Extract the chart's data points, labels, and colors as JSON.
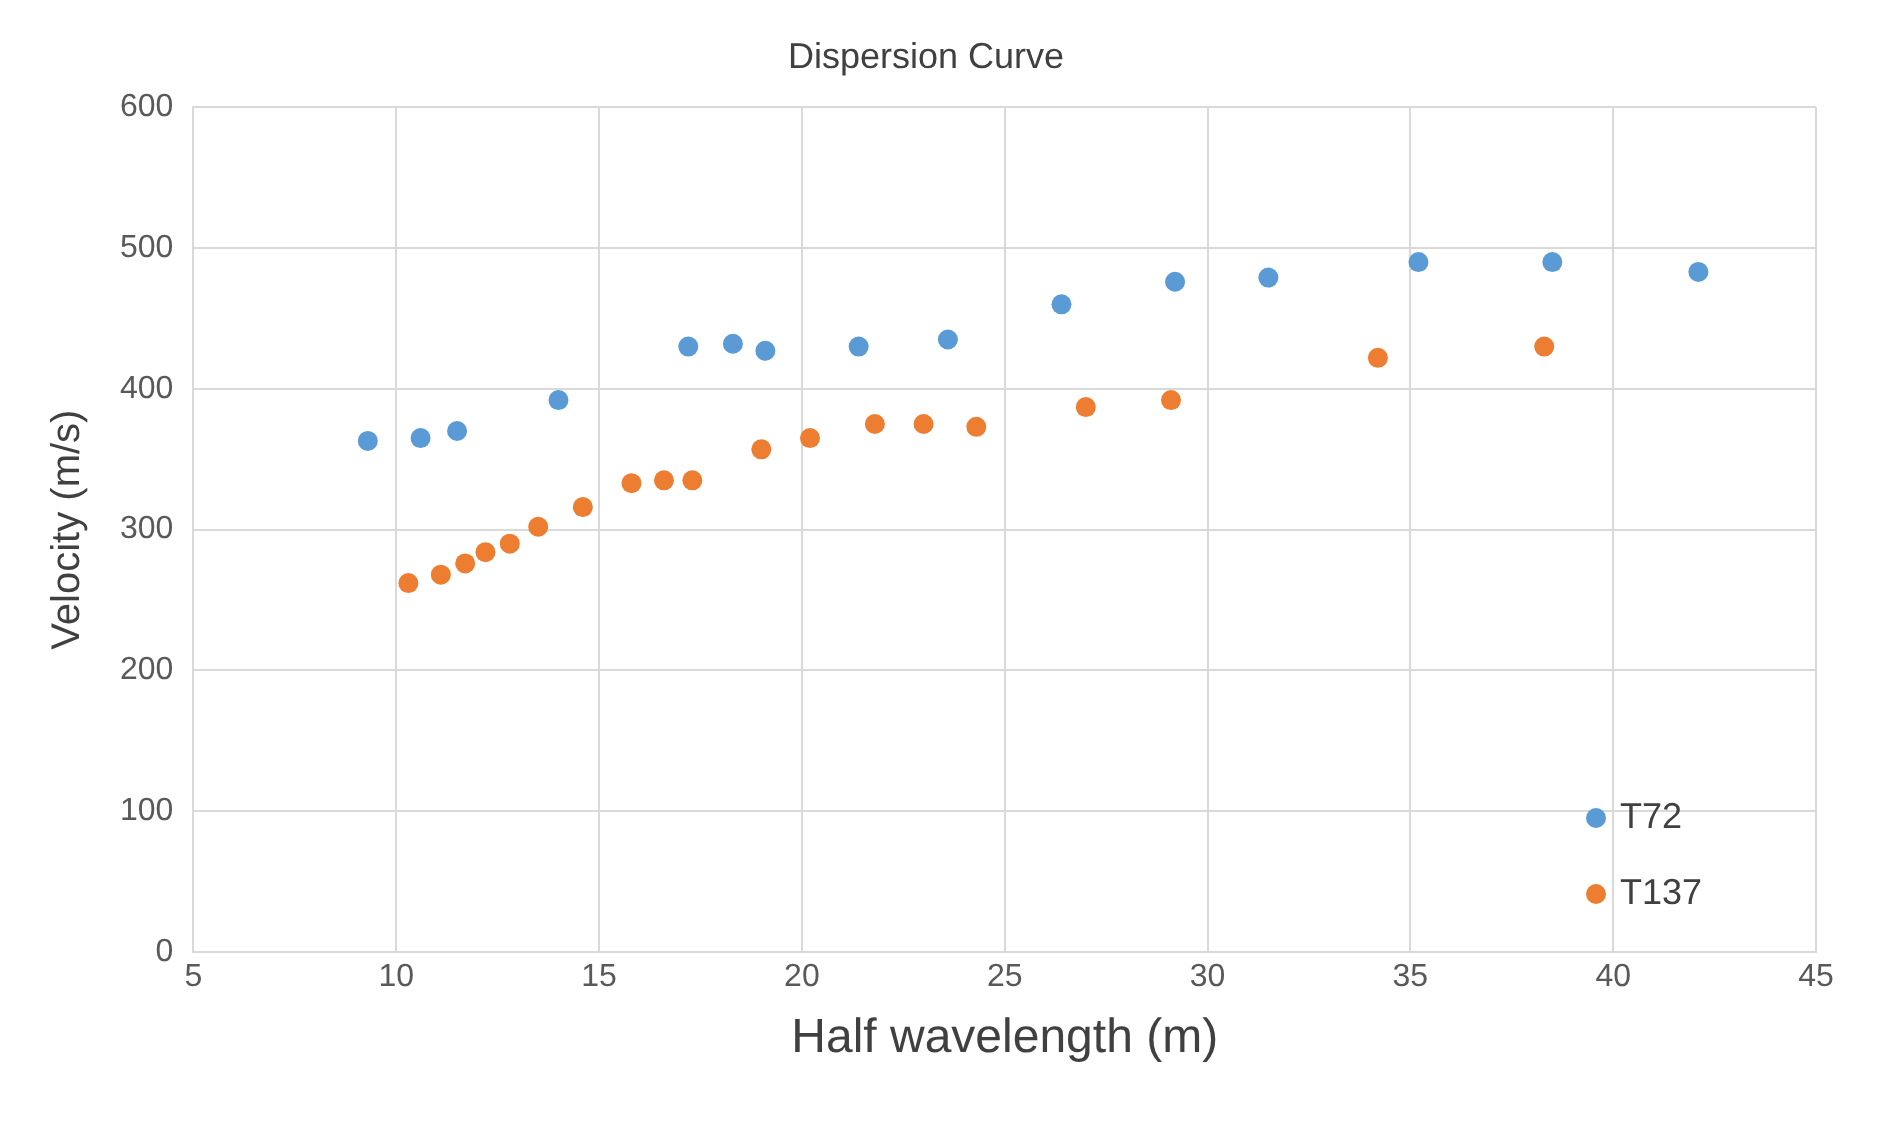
{
  "chart_data": {
    "type": "scatter",
    "title": "Dispersion Curve",
    "xlabel": "Half wavelength (m)",
    "ylabel": "Velocity (m/s)",
    "xlim": [
      5,
      45
    ],
    "xticks": [
      5,
      10,
      15,
      20,
      25,
      30,
      35,
      40,
      45
    ],
    "ylim": [
      0,
      600
    ],
    "yticks": [
      0,
      100,
      200,
      300,
      400,
      500,
      600
    ],
    "grid": true,
    "legend": "bottom right",
    "marker": "circle",
    "series": [
      {
        "name": "T72",
        "color": "#5b9bd5",
        "x": [
          9.3,
          10.6,
          11.5,
          14.0,
          17.2,
          18.3,
          19.1,
          21.4,
          23.6,
          26.4,
          29.2,
          31.5,
          35.2,
          38.5,
          42.1
        ],
        "values": [
          363,
          365,
          370,
          392,
          430,
          432,
          427,
          430,
          435,
          460,
          476,
          479,
          490,
          490,
          483
        ]
      },
      {
        "name": "T137",
        "color": "#ed7d31",
        "x": [
          10.3,
          11.1,
          11.7,
          12.2,
          12.8,
          13.5,
          14.6,
          15.8,
          16.6,
          17.3,
          19.0,
          20.2,
          21.8,
          23.0,
          24.3,
          27.0,
          29.1,
          34.2,
          38.3
        ],
        "values": [
          262,
          268,
          276,
          284,
          290,
          302,
          316,
          333,
          335,
          335,
          357,
          365,
          375,
          375,
          373,
          387,
          392,
          422,
          430
        ]
      }
    ]
  }
}
